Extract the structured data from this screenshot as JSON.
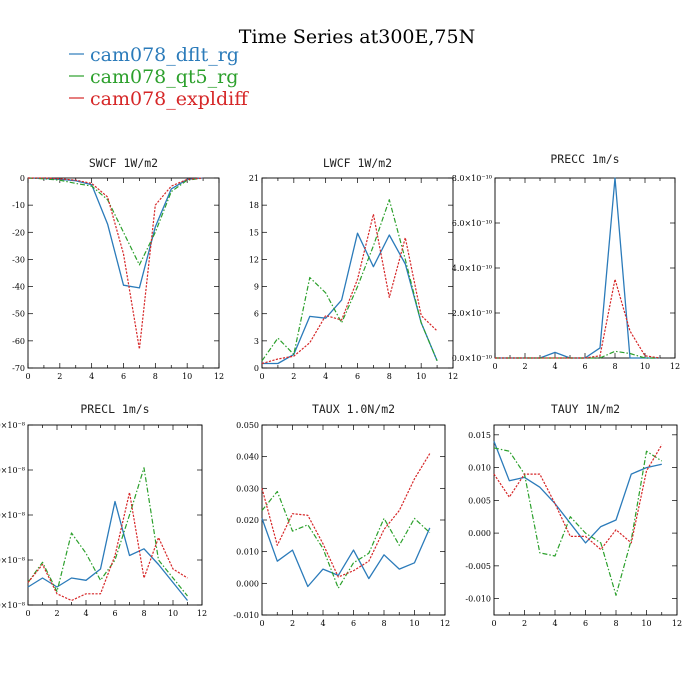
{
  "figure": {
    "title": "Time Series at300E,75N"
  },
  "legend": [
    {
      "label": "cam078_dflt_rg",
      "color": "#2b7bba"
    },
    {
      "label": "cam078_qt5_rg",
      "color": "#2ca02c"
    },
    {
      "label": "cam078_expldiff",
      "color": "#d62728"
    }
  ],
  "chart_data": [
    {
      "type": "line",
      "title": "SWCF  1W/m2",
      "x": [
        0,
        1,
        2,
        3,
        4,
        5,
        6,
        7,
        8,
        9,
        10,
        11
      ],
      "xlim": [
        0,
        12
      ],
      "ylim": [
        -70,
        0
      ],
      "xticks": [
        0,
        2,
        4,
        6,
        8,
        10,
        12
      ],
      "xtick_labels": [
        "0",
        "2",
        "4",
        "6",
        "8",
        "10",
        "12"
      ],
      "yticks": [
        -70,
        -60,
        -50,
        -40,
        -30,
        -20,
        -10,
        0
      ],
      "ytick_labels": [
        "-70",
        "-60",
        "-50",
        "-40",
        "-30",
        "-20",
        "-10",
        "0"
      ],
      "series": [
        {
          "name": "cam078_dflt_rg",
          "values": [
            0,
            -0.2,
            -0.5,
            -1,
            -2.5,
            -17,
            -39.5,
            -40.5,
            -18,
            -4,
            -0.5,
            0
          ]
        },
        {
          "name": "cam078_qt5_rg",
          "values": [
            0,
            -0.3,
            -0.8,
            -2,
            -3,
            -8,
            -20,
            -32,
            -20,
            -5,
            -0.8,
            0
          ]
        },
        {
          "name": "cam078_expldiff",
          "values": [
            0,
            0,
            -0.3,
            -0.8,
            -2,
            -7,
            -28,
            -63,
            -10,
            -3,
            -0.5,
            0
          ]
        }
      ]
    },
    {
      "type": "line",
      "title": "LWCF  1W/m2",
      "x": [
        0,
        1,
        2,
        3,
        4,
        5,
        6,
        7,
        8,
        9,
        10,
        11
      ],
      "xlim": [
        0,
        12
      ],
      "ylim": [
        0,
        21
      ],
      "xticks": [
        0,
        2,
        4,
        6,
        8,
        10,
        12
      ],
      "xtick_labels": [
        "0",
        "2",
        "4",
        "6",
        "8",
        "10",
        "12"
      ],
      "yticks": [
        0,
        3,
        6,
        9,
        12,
        15,
        18,
        21
      ],
      "ytick_labels": [
        "0",
        "3",
        "6",
        "9",
        "12",
        "15",
        "18",
        "21"
      ],
      "series": [
        {
          "name": "cam078_dflt_rg",
          "values": [
            0.5,
            0.5,
            1.5,
            5.7,
            5.5,
            7.5,
            14.9,
            11.2,
            14.7,
            11.5,
            5,
            0.8
          ]
        },
        {
          "name": "cam078_qt5_rg",
          "values": [
            0.8,
            3.3,
            1.5,
            10,
            8.3,
            5,
            9,
            13.5,
            18.6,
            12,
            5,
            0.8
          ]
        },
        {
          "name": "cam078_expldiff",
          "values": [
            0.5,
            1,
            1.3,
            2.8,
            5.8,
            5.3,
            9.8,
            17,
            7.8,
            14.4,
            5.8,
            4.1
          ]
        }
      ]
    },
    {
      "type": "line",
      "title": "PRECC   1m/s",
      "x": [
        0,
        1,
        2,
        3,
        4,
        5,
        6,
        7,
        8,
        9,
        10,
        11
      ],
      "xlim": [
        0,
        12
      ],
      "ylim": [
        0,
        8e-10
      ],
      "xticks": [
        0,
        2,
        4,
        6,
        8,
        10,
        12
      ],
      "xtick_labels": [
        "0",
        "2",
        "4",
        "6",
        "8",
        "10",
        "12"
      ],
      "yticks": [
        0,
        2e-10,
        4e-10,
        6e-10,
        8e-10
      ],
      "ytick_labels": [
        "0.0×10⁻¹⁰",
        "2.0×10⁻¹⁰",
        "4.0×10⁻¹⁰",
        "6.0×10⁻¹⁰",
        "8.0×10⁻¹⁰"
      ],
      "series": [
        {
          "name": "cam078_dflt_rg",
          "values": [
            0,
            0,
            0,
            0,
            2.5e-11,
            0,
            0,
            4.5e-11,
            8e-10,
            0,
            0,
            0
          ]
        },
        {
          "name": "cam078_qt5_rg",
          "values": [
            0,
            0,
            0,
            0,
            0,
            0,
            0,
            0,
            3e-11,
            2e-11,
            0,
            0
          ]
        },
        {
          "name": "cam078_expldiff",
          "values": [
            0,
            0,
            0,
            0,
            0,
            0,
            0,
            1e-11,
            3.5e-10,
            1.2e-10,
            1e-11,
            0
          ]
        }
      ]
    },
    {
      "type": "line",
      "title": "PRECL   1m/s",
      "x": [
        0,
        1,
        2,
        3,
        4,
        5,
        6,
        7,
        8,
        9,
        10,
        11
      ],
      "xlim": [
        0,
        12
      ],
      "ylim": [
        0,
        8e-08
      ],
      "xticks": [
        0,
        2,
        4,
        6,
        8,
        10,
        12
      ],
      "xtick_labels": [
        "0",
        "2",
        "4",
        "6",
        "8",
        "10",
        "12"
      ],
      "yticks": [
        0,
        2e-08,
        4e-08,
        6e-08,
        8e-08
      ],
      "ytick_labels": [
        "0×10⁻⁸",
        "2.0×10⁻⁸",
        "4.0×10⁻⁸",
        "6.0×10⁻⁸",
        "8.0×10⁻⁸"
      ],
      "series": [
        {
          "name": "cam078_dflt_rg",
          "values": [
            8e-09,
            1.2e-08,
            8e-09,
            1.2e-08,
            1.1e-08,
            1.6e-08,
            4.6e-08,
            2.2e-08,
            2.5e-08,
            1.8e-08,
            1e-08,
            2e-09
          ]
        },
        {
          "name": "cam078_qt5_rg",
          "values": [
            1e-08,
            1.9e-08,
            6e-09,
            3.2e-08,
            2.3e-08,
            1.1e-08,
            2e-08,
            4e-08,
            6.1e-08,
            2e-08,
            1.2e-08,
            4e-09
          ]
        },
        {
          "name": "cam078_expldiff",
          "values": [
            1e-08,
            1.8e-08,
            5e-09,
            2e-09,
            5e-09,
            5e-09,
            2.2e-08,
            5e-08,
            1.2e-08,
            3e-08,
            1.6e-08,
            1.2e-08
          ]
        }
      ]
    },
    {
      "type": "line",
      "title": "TAUX  1.0N/m2",
      "x": [
        0,
        1,
        2,
        3,
        4,
        5,
        6,
        7,
        8,
        9,
        10,
        11
      ],
      "xlim": [
        0,
        12
      ],
      "ylim": [
        -0.01,
        0.05
      ],
      "xticks": [
        0,
        2,
        4,
        6,
        8,
        10,
        12
      ],
      "xtick_labels": [
        "0",
        "2",
        "4",
        "6",
        "8",
        "10",
        "12"
      ],
      "yticks": [
        -0.01,
        0,
        0.01,
        0.02,
        0.03,
        0.04,
        0.05
      ],
      "ytick_labels": [
        "-0.010",
        "0.000",
        "0.010",
        "0.020",
        "0.030",
        "0.040",
        "0.050"
      ],
      "series": [
        {
          "name": "cam078_dflt_rg",
          "values": [
            0.0205,
            0.007,
            0.0105,
            -0.001,
            0.0045,
            0.0025,
            0.0105,
            0.0015,
            0.009,
            0.0045,
            0.0065,
            0.0175
          ]
        },
        {
          "name": "cam078_qt5_rg",
          "values": [
            0.023,
            0.029,
            0.0165,
            0.0185,
            0.011,
            -0.0015,
            0.0065,
            0.0095,
            0.0205,
            0.012,
            0.0205,
            0.016
          ]
        },
        {
          "name": "cam078_expldiff",
          "values": [
            0.03,
            0.012,
            0.022,
            0.0215,
            0.0125,
            0.002,
            0.004,
            0.007,
            0.017,
            0.023,
            0.033,
            0.041
          ]
        }
      ]
    },
    {
      "type": "line",
      "title": "TAUY  1N/m2",
      "x": [
        0,
        1,
        2,
        3,
        4,
        5,
        6,
        7,
        8,
        9,
        10,
        11
      ],
      "xlim": [
        0,
        12
      ],
      "ylim": [
        -0.0125,
        0.0165
      ],
      "xticks": [
        0,
        2,
        4,
        6,
        8,
        10,
        12
      ],
      "xtick_labels": [
        "0",
        "2",
        "4",
        "6",
        "8",
        "10",
        "12"
      ],
      "yticks": [
        -0.01,
        -0.005,
        0,
        0.005,
        0.01,
        0.015
      ],
      "ytick_labels": [
        "-0.010",
        "-0.005",
        "0.000",
        "0.005",
        "0.010",
        "0.015"
      ],
      "series": [
        {
          "name": "cam078_dflt_rg",
          "values": [
            0.014,
            0.008,
            0.0085,
            0.007,
            0.0045,
            0.0015,
            -0.0015,
            0.001,
            0.002,
            0.009,
            0.01,
            0.0105
          ]
        },
        {
          "name": "cam078_qt5_rg",
          "values": [
            0.013,
            0.0125,
            0.009,
            -0.003,
            -0.0035,
            0.0025,
            0,
            -0.0015,
            -0.0095,
            -0.001,
            0.0125,
            0.011
          ]
        },
        {
          "name": "cam078_expldiff",
          "values": [
            0.009,
            0.0055,
            0.009,
            0.009,
            0.0045,
            -0.0005,
            -0.0005,
            -0.0025,
            0.0005,
            -0.0015,
            0.0095,
            0.0135
          ]
        }
      ]
    }
  ]
}
